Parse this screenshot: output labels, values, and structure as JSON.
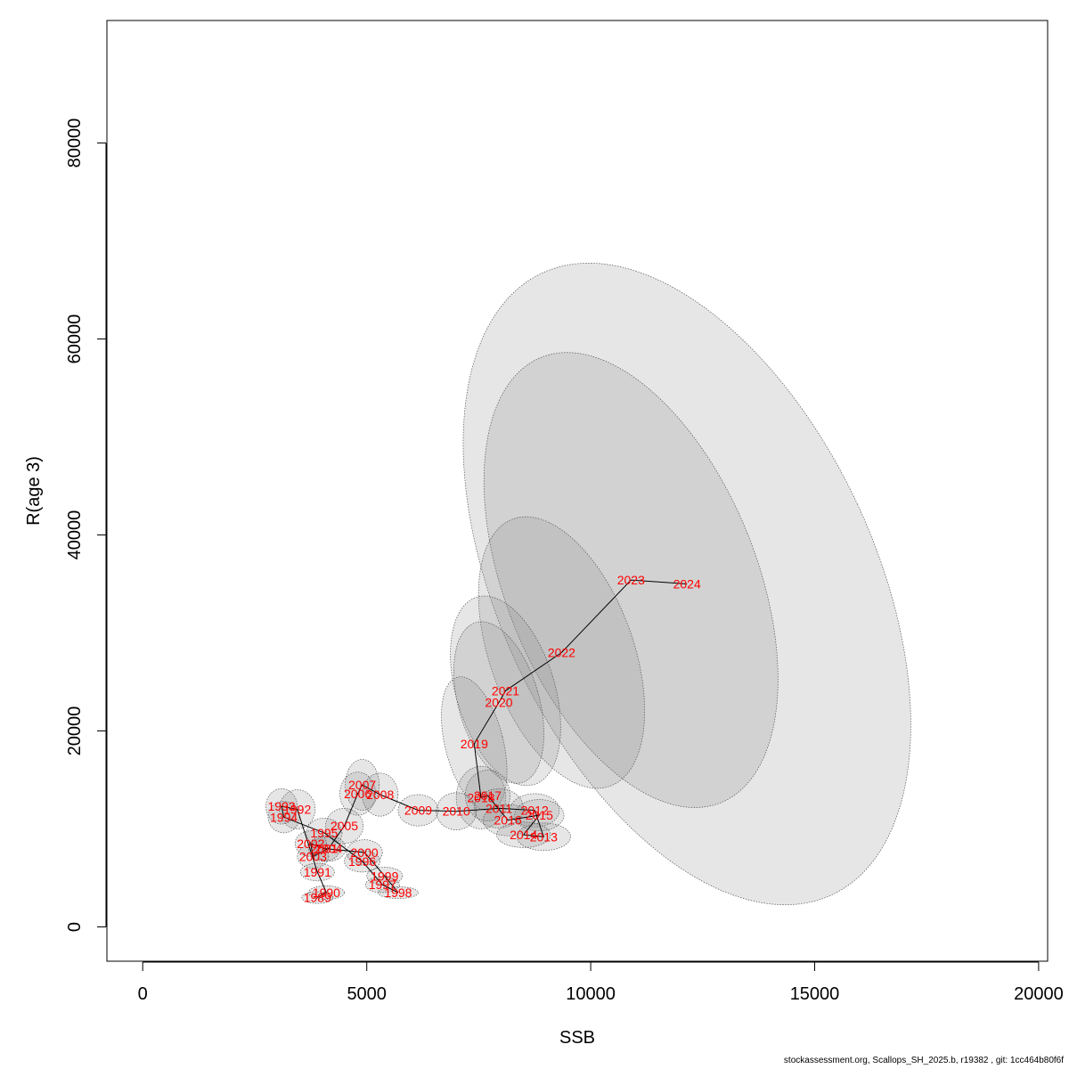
{
  "chart_data": {
    "type": "scatter",
    "title": "",
    "xlabel": "SSB",
    "ylabel": "R(age 3)",
    "xlim": [
      -800,
      20200
    ],
    "ylim": [
      -3500,
      92500
    ],
    "xticks": [
      0,
      5000,
      10000,
      15000,
      20000
    ],
    "yticks": [
      0,
      20000,
      40000,
      60000,
      80000
    ],
    "grid": false,
    "connected_path": true,
    "confidence_ellipses": true,
    "colors": {
      "labels": "#ff0000",
      "path": "#000000",
      "ellipse_fill": "#808080",
      "ellipse_stroke": "#555555"
    },
    "points": [
      {
        "year": "1989",
        "x": 3900,
        "y": 3000
      },
      {
        "year": "1990",
        "x": 4100,
        "y": 3500
      },
      {
        "year": "1991",
        "x": 3900,
        "y": 5600
      },
      {
        "year": "1992",
        "x": 3450,
        "y": 12000
      },
      {
        "year": "1993",
        "x": 3100,
        "y": 12300
      },
      {
        "year": "1994",
        "x": 3150,
        "y": 11200
      },
      {
        "year": "1995",
        "x": 4050,
        "y": 9600
      },
      {
        "year": "1996",
        "x": 4900,
        "y": 6700
      },
      {
        "year": "1997",
        "x": 5350,
        "y": 4300
      },
      {
        "year": "1998",
        "x": 5700,
        "y": 3500
      },
      {
        "year": "1999",
        "x": 5400,
        "y": 5200
      },
      {
        "year": "2000",
        "x": 4950,
        "y": 7600
      },
      {
        "year": "2001",
        "x": 4050,
        "y": 8000
      },
      {
        "year": "2002",
        "x": 3750,
        "y": 8500
      },
      {
        "year": "2003",
        "x": 3800,
        "y": 7200
      },
      {
        "year": "2004",
        "x": 4150,
        "y": 8000
      },
      {
        "year": "2005",
        "x": 4500,
        "y": 10300
      },
      {
        "year": "2006",
        "x": 4800,
        "y": 13600
      },
      {
        "year": "2007",
        "x": 4900,
        "y": 14500
      },
      {
        "year": "2008",
        "x": 5300,
        "y": 13500
      },
      {
        "year": "2009",
        "x": 6150,
        "y": 11900
      },
      {
        "year": "2010",
        "x": 7000,
        "y": 11800
      },
      {
        "year": "2011",
        "x": 7950,
        "y": 12100
      },
      {
        "year": "2012",
        "x": 8750,
        "y": 11900
      },
      {
        "year": "2013",
        "x": 8950,
        "y": 9200
      },
      {
        "year": "2014",
        "x": 8500,
        "y": 9400
      },
      {
        "year": "2015",
        "x": 8850,
        "y": 11400
      },
      {
        "year": "2016",
        "x": 8150,
        "y": 10900
      },
      {
        "year": "2017",
        "x": 7700,
        "y": 13400
      },
      {
        "year": "2018",
        "x": 7550,
        "y": 13200
      },
      {
        "year": "2019",
        "x": 7400,
        "y": 18700
      },
      {
        "year": "2020",
        "x": 7950,
        "y": 22900
      },
      {
        "year": "2021",
        "x": 8100,
        "y": 24100
      },
      {
        "year": "2022",
        "x": 9350,
        "y": 28000
      },
      {
        "year": "2023",
        "x": 10900,
        "y": 35400
      },
      {
        "year": "2024",
        "x": 12150,
        "y": 35000
      }
    ],
    "ellipses": [
      {
        "year": "1989",
        "rx": 350,
        "ry": 600,
        "angle": 0
      },
      {
        "year": "1990",
        "rx": 400,
        "ry": 700,
        "angle": 0
      },
      {
        "year": "1991",
        "rx": 380,
        "ry": 900,
        "angle": 0
      },
      {
        "year": "1992",
        "rx": 400,
        "ry": 2000,
        "angle": 0
      },
      {
        "year": "1993",
        "rx": 350,
        "ry": 1800,
        "angle": 0
      },
      {
        "year": "1994",
        "rx": 350,
        "ry": 1600,
        "angle": 0
      },
      {
        "year": "1995",
        "rx": 400,
        "ry": 1500,
        "angle": 0
      },
      {
        "year": "1996",
        "rx": 400,
        "ry": 1100,
        "angle": 0
      },
      {
        "year": "1997",
        "rx": 380,
        "ry": 800,
        "angle": 0
      },
      {
        "year": "1998",
        "rx": 450,
        "ry": 600,
        "angle": 0
      },
      {
        "year": "1999",
        "rx": 400,
        "ry": 900,
        "angle": 0
      },
      {
        "year": "2000",
        "rx": 400,
        "ry": 1300,
        "angle": 0
      },
      {
        "year": "2001",
        "rx": 350,
        "ry": 1300,
        "angle": 0
      },
      {
        "year": "2002",
        "rx": 350,
        "ry": 1300,
        "angle": 0
      },
      {
        "year": "2003",
        "rx": 350,
        "ry": 1200,
        "angle": 0
      },
      {
        "year": "2004",
        "rx": 380,
        "ry": 1300,
        "angle": 0
      },
      {
        "year": "2005",
        "rx": 420,
        "ry": 1800,
        "angle": 0
      },
      {
        "year": "2006",
        "rx": 400,
        "ry": 2200,
        "angle": 0
      },
      {
        "year": "2007",
        "rx": 380,
        "ry": 2600,
        "angle": 0
      },
      {
        "year": "2008",
        "rx": 400,
        "ry": 2200,
        "angle": 0
      },
      {
        "year": "2009",
        "rx": 450,
        "ry": 1600,
        "angle": 0
      },
      {
        "year": "2010",
        "rx": 450,
        "ry": 1900,
        "angle": 0
      },
      {
        "year": "2011",
        "rx": 550,
        "ry": 2000,
        "angle": 0
      },
      {
        "year": "2012",
        "rx": 550,
        "ry": 1700,
        "angle": 0
      },
      {
        "year": "2013",
        "rx": 600,
        "ry": 1400,
        "angle": 0
      },
      {
        "year": "2014",
        "rx": 600,
        "ry": 1300,
        "angle": 0
      },
      {
        "year": "2015",
        "rx": 550,
        "ry": 1600,
        "angle": 0
      },
      {
        "year": "2016",
        "rx": 550,
        "ry": 1600,
        "angle": 0
      },
      {
        "year": "2017",
        "rx": 500,
        "ry": 2600,
        "angle": 0
      },
      {
        "year": "2018",
        "rx": 550,
        "ry": 3200,
        "angle": 0
      },
      {
        "year": "2019",
        "rx": 650,
        "ry": 7000,
        "angle": 14
      },
      {
        "year": "2020",
        "rx": 900,
        "ry": 8500,
        "angle": 16
      },
      {
        "year": "2021",
        "rx": 1100,
        "ry": 10000,
        "angle": 17
      },
      {
        "year": "2022",
        "rx": 1600,
        "ry": 14500,
        "angle": 20
      },
      {
        "year": "2023",
        "rx": 2800,
        "ry": 24500,
        "angle": 22
      },
      {
        "year": "2024",
        "rx": 4200,
        "ry": 35000,
        "angle": 25
      }
    ]
  },
  "footer": "stockassessment.org, Scallops_SH_2025.b, r19382 , git: 1cc464b80f6f"
}
